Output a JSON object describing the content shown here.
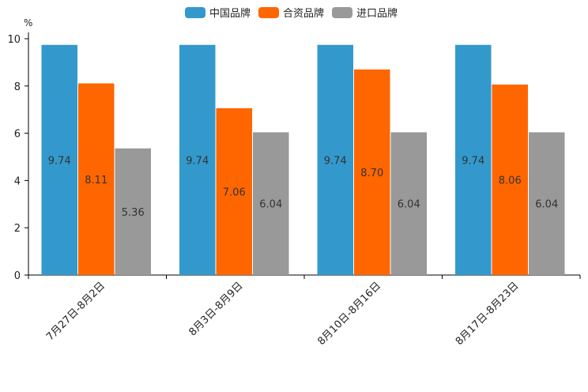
{
  "chart_data": {
    "type": "bar",
    "unit": "%",
    "categories": [
      "7月27日-8月2日",
      "8月3日-8月9日",
      "8月10日-8月16日",
      "8月17日-8月23日"
    ],
    "series": [
      {
        "name": "中国品牌",
        "color": "#3399CC",
        "values": [
          9.74,
          9.74,
          9.74,
          9.74
        ]
      },
      {
        "name": "合资品牌",
        "color": "#FF6600",
        "values": [
          8.11,
          7.06,
          8.7,
          8.06
        ]
      },
      {
        "name": "进口品牌",
        "color": "#999999",
        "values": [
          5.36,
          6.04,
          6.04,
          6.04
        ]
      }
    ],
    "ylim": [
      0,
      10
    ],
    "yticks": [
      "0",
      "2",
      "4",
      "6",
      "8",
      "10"
    ],
    "legend_position": "top-center"
  }
}
